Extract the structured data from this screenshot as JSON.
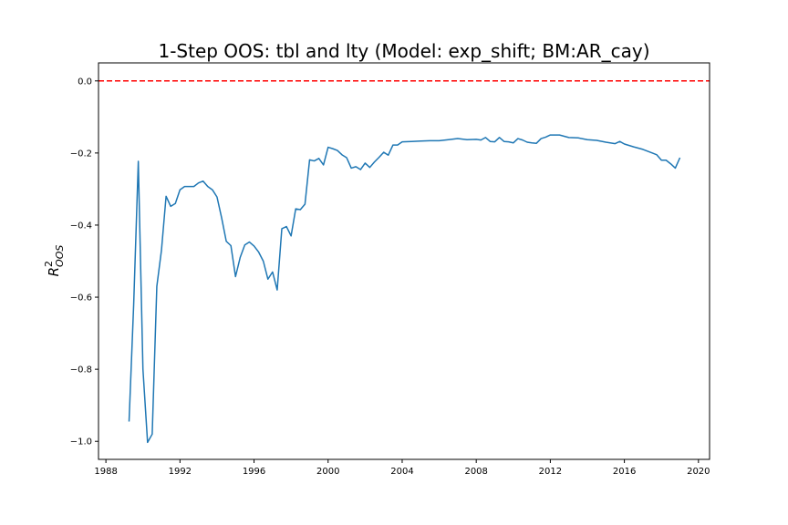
{
  "chart_data": {
    "type": "line",
    "title": "1-Step OOS: tbl and lty (Model: exp_shift; BM:AR_cay)",
    "xlabel": "",
    "ylabel_base": "R",
    "ylabel_sup": "2",
    "ylabel_sub": "OOS",
    "xlim": [
      1987.6,
      2020.6
    ],
    "ylim": [
      -1.05,
      0.05
    ],
    "xticks": [
      1988,
      1992,
      1996,
      2000,
      2004,
      2008,
      2012,
      2016,
      2020
    ],
    "xtick_labels": [
      "1988",
      "1992",
      "1996",
      "2000",
      "2004",
      "2008",
      "2012",
      "2016",
      "2020"
    ],
    "yticks": [
      0.0,
      -0.2,
      -0.4,
      -0.6,
      -0.8,
      -1.0
    ],
    "ytick_labels": [
      "0.0",
      "−0.2",
      "−0.4",
      "−0.6",
      "−0.8",
      "−1.0"
    ],
    "grid": false,
    "reference_line": {
      "y": 0.0,
      "color": "#ff0000",
      "style": "dashed"
    },
    "series_color": "#1f77b4",
    "series": [
      {
        "x": [
          1989.25,
          1989.5,
          1989.75,
          1990.0,
          1990.25,
          1990.5,
          1990.75,
          1991.0,
          1991.25,
          1991.5,
          1991.75,
          1992.0,
          1992.25,
          1992.5,
          1992.75,
          1993.0,
          1993.25,
          1993.5,
          1993.75,
          1994.0,
          1994.25,
          1994.5,
          1994.75,
          1995.0,
          1995.25,
          1995.5,
          1995.75,
          1996.0,
          1996.25,
          1996.5,
          1996.75,
          1997.0,
          1997.25,
          1997.5,
          1997.75,
          1998.0,
          1998.25,
          1998.5,
          1998.75,
          1999.0,
          1999.25,
          1999.5,
          1999.75,
          2000.0,
          2000.25,
          2000.5,
          2000.75,
          2001.0,
          2001.25,
          2001.5,
          2001.75,
          2002.0,
          2002.25,
          2002.5,
          2002.75,
          2003.0,
          2003.25,
          2003.5,
          2003.75,
          2004.0,
          2004.5,
          2005.0,
          2005.5,
          2006.0,
          2006.5,
          2007.0,
          2007.5,
          2008.0,
          2008.25,
          2008.5,
          2008.75,
          2009.0,
          2009.25,
          2009.5,
          2009.75,
          2010.0,
          2010.25,
          2010.5,
          2010.75,
          2011.0,
          2011.25,
          2011.5,
          2011.75,
          2012.0,
          2012.5,
          2013.0,
          2013.5,
          2014.0,
          2014.5,
          2015.0,
          2015.5,
          2015.75,
          2016.0,
          2016.5,
          2017.0,
          2017.5,
          2017.75,
          2018.0,
          2018.25,
          2018.5,
          2018.75,
          2019.0
        ],
        "y": [
          -0.945,
          -0.62,
          -0.223,
          -0.8,
          -1.003,
          -0.98,
          -0.57,
          -0.47,
          -0.32,
          -0.348,
          -0.34,
          -0.302,
          -0.293,
          -0.293,
          -0.293,
          -0.283,
          -0.278,
          -0.293,
          -0.302,
          -0.322,
          -0.38,
          -0.445,
          -0.457,
          -0.543,
          -0.49,
          -0.455,
          -0.447,
          -0.458,
          -0.475,
          -0.5,
          -0.55,
          -0.53,
          -0.58,
          -0.41,
          -0.404,
          -0.43,
          -0.355,
          -0.357,
          -0.342,
          -0.219,
          -0.222,
          -0.215,
          -0.233,
          -0.184,
          -0.188,
          -0.193,
          -0.205,
          -0.213,
          -0.242,
          -0.238,
          -0.246,
          -0.228,
          -0.24,
          -0.225,
          -0.212,
          -0.198,
          -0.206,
          -0.178,
          -0.178,
          -0.169,
          -0.168,
          -0.167,
          -0.166,
          -0.166,
          -0.163,
          -0.16,
          -0.163,
          -0.162,
          -0.164,
          -0.157,
          -0.168,
          -0.169,
          -0.157,
          -0.168,
          -0.169,
          -0.172,
          -0.16,
          -0.164,
          -0.17,
          -0.172,
          -0.173,
          -0.16,
          -0.156,
          -0.15,
          -0.15,
          -0.157,
          -0.158,
          -0.163,
          -0.165,
          -0.17,
          -0.174,
          -0.168,
          -0.175,
          -0.183,
          -0.19,
          -0.2,
          -0.205,
          -0.22,
          -0.22,
          -0.23,
          -0.242,
          -0.213
        ]
      }
    ]
  }
}
